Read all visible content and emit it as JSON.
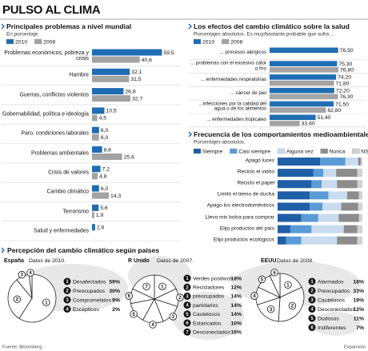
{
  "title": "PULSO AL CLIMA",
  "section_title": "Percepción del cambio climático según países",
  "source": "Fuente: Bloomberg",
  "credit": "Expansión",
  "chart_data": [
    {
      "type": "bar",
      "title": "Principales problemas a nivel mundial",
      "subtitle": "En porcentaje.",
      "categories": [
        "Problemas económicos, pobreza y crisis",
        "Hambre",
        "Guerras, conflictos violentos",
        "Gobernabilidad, política e ideología",
        "Paro, condiciones laborales",
        "Problemas ambientales",
        "Crisis de valores",
        "Cambio climático",
        "Terrorismo",
        "Salud y enfermedades"
      ],
      "series": [
        {
          "name": "2010",
          "color": "#1f6db3",
          "values": [
            59.5,
            32.1,
            26.8,
            10.5,
            6.0,
            8.6,
            7.2,
            6.0,
            5.6,
            2.6
          ],
          "value_labels": [
            "59,5",
            "32,1",
            "26,8",
            "10,5",
            "6,0",
            "8,6",
            "7,2",
            "6,0",
            "5,6",
            "2,6"
          ]
        },
        {
          "name": "2008",
          "color": "#a3a3a3",
          "values": [
            40.6,
            31.5,
            32.7,
            4.5,
            6.0,
            25.6,
            4.8,
            14.3,
            1.9,
            null
          ],
          "value_labels": [
            "40,6",
            "31,5",
            "32,7",
            "4,5",
            "6,0",
            "25,6",
            "4,8",
            "14,3",
            "1,9",
            null
          ]
        }
      ]
    },
    {
      "type": "bar",
      "title": "Los efectos del cambio climático sobre la salud",
      "subtitle": "Porcentajes absolutos. Es muy/bastante probable que sufra ...",
      "categories": [
        "... procesos alérgicos",
        "... problemas con el excesivo calor o frío",
        "... enfermedades respiratorias",
        "... cáncer de piel",
        "...infecciones por la calidad del agua o de los alimentos",
        "... enfermedades tropicales"
      ],
      "series": [
        {
          "name": "2010",
          "color": "#1f6db3",
          "values": [
            76.5,
            75.3,
            74.2,
            72.2,
            71.5,
            51.4
          ],
          "value_labels": [
            "76,50",
            "75,30",
            "74,20",
            "72,20",
            "71,50",
            "51,40"
          ]
        },
        {
          "name": "2008",
          "color": "#a3a3a3",
          "values": [
            null,
            76.8,
            71.8,
            76.3,
            62.8,
            33.6
          ],
          "value_labels": [
            null,
            "76,80",
            "71,80",
            "76,30",
            "62,80",
            "33,60"
          ]
        }
      ]
    },
    {
      "type": "bar",
      "stacked": true,
      "title": "Frecuencia de los comportamientos medioambientales",
      "subtitle": "Porcentajes absolutos.",
      "categories": [
        "Apagó luces",
        "Reciclo el vidrio",
        "Reciclo el papel",
        "Limitó el tiemo de ducha",
        "Apago los electrodomésticos",
        "Llevo mis bolsa para comprar",
        "Elijo productos del país",
        "Elijo productos ecológicos"
      ],
      "series": [
        {
          "name": "Siempre",
          "color": "#1f5fa6",
          "values": [
            50,
            42,
            40,
            38,
            38,
            28,
            15,
            10
          ]
        },
        {
          "name": "Casi siempre",
          "color": "#5b9bd5",
          "values": [
            30,
            12,
            12,
            22,
            15,
            20,
            25,
            18
          ]
        },
        {
          "name": "Alguna vez",
          "color": "#c9dcef",
          "values": [
            15,
            15,
            18,
            22,
            22,
            24,
            38,
            42
          ]
        },
        {
          "name": "Nunca",
          "color": "#8c8c8c",
          "values": [
            3,
            25,
            24,
            14,
            20,
            24,
            16,
            24
          ]
        },
        {
          "name": "NS/NC",
          "color": "#d2d2d2",
          "values": [
            2,
            6,
            6,
            4,
            5,
            4,
            6,
            6
          ]
        }
      ]
    },
    {
      "type": "pie",
      "title": "España",
      "subtitle": "Datos de 2010.",
      "keys": [
        "1",
        "2",
        "3",
        "4"
      ],
      "categories": [
        "Desafectados",
        "Preocupados",
        "Comprometidos",
        "Escépticos"
      ],
      "values": [
        59,
        30,
        9,
        2
      ],
      "value_labels": [
        "59%",
        "30%",
        "9%",
        "2%"
      ]
    },
    {
      "type": "pie",
      "title": "R Unido",
      "subtitle": "Datos de 2007.",
      "keys": [
        "1",
        "2",
        "3",
        "4",
        "5",
        "6",
        "7"
      ],
      "categories": [
        "Verdes positivos",
        "Recicladores",
        "preocupados",
        "partidarios",
        "Cautelosos",
        "Estancados",
        "Desconectados"
      ],
      "values": [
        18,
        12,
        14,
        14,
        14,
        10,
        18
      ],
      "value_labels": [
        "18%",
        "12%",
        "14%",
        "14%",
        "14%",
        "10%",
        "18%"
      ]
    },
    {
      "type": "pie",
      "title": "EEUU",
      "subtitle": "Datos de 2008.",
      "keys": [
        "1",
        "2",
        "3",
        "4",
        "5",
        "6"
      ],
      "categories": [
        "Alarmados",
        "Preocupados",
        "Cautelosos",
        "Desconectados",
        "Dudosos",
        "Indiferentes"
      ],
      "values": [
        18,
        33,
        19,
        12,
        11,
        7
      ],
      "value_labels": [
        "18%",
        "33%",
        "19%",
        "12%",
        "11%",
        "7%"
      ]
    }
  ]
}
